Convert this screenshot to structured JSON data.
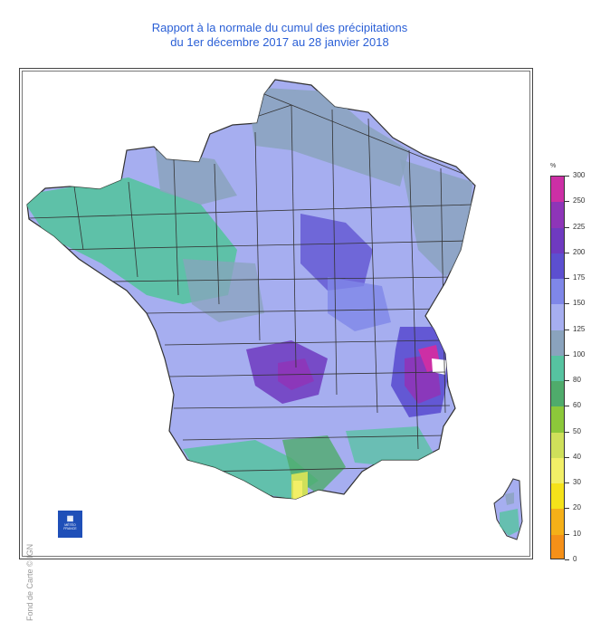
{
  "title": {
    "line1": "Rapport à la normale du cumul des précipitations",
    "line2": "du 1er décembre 2017 au 28 janvier 2018"
  },
  "map": {
    "region": "France",
    "base_color": "#a6aef0",
    "credit": "Fond de Carte © IGN",
    "logo_icon": "meteo-france-logo",
    "logo_text": "MÉTÉO FRANCE"
  },
  "legend": {
    "unit": "%",
    "classes": [
      {
        "label": "300",
        "color": "#cc2fa5"
      },
      {
        "label": "250",
        "color": "#8e35b8"
      },
      {
        "label": "225",
        "color": "#6f3ac0"
      },
      {
        "label": "200",
        "color": "#5c4fd0"
      },
      {
        "label": "175",
        "color": "#7f87e8"
      },
      {
        "label": "150",
        "color": "#a6aef0"
      },
      {
        "label": "125",
        "color": "#8aa3bd"
      },
      {
        "label": "100",
        "color": "#56c3a0"
      },
      {
        "label": "80",
        "color": "#4fab6b"
      },
      {
        "label": "60",
        "color": "#8cc83a"
      },
      {
        "label": "50",
        "color": "#cfe05a"
      },
      {
        "label": "40",
        "color": "#f2ef67"
      },
      {
        "label": "30",
        "color": "#f5e21a"
      },
      {
        "label": "20",
        "color": "#f5b018"
      },
      {
        "label": "10",
        "color": "#f59018"
      },
      {
        "label": "0",
        "color": "#ef6d1a"
      }
    ]
  }
}
